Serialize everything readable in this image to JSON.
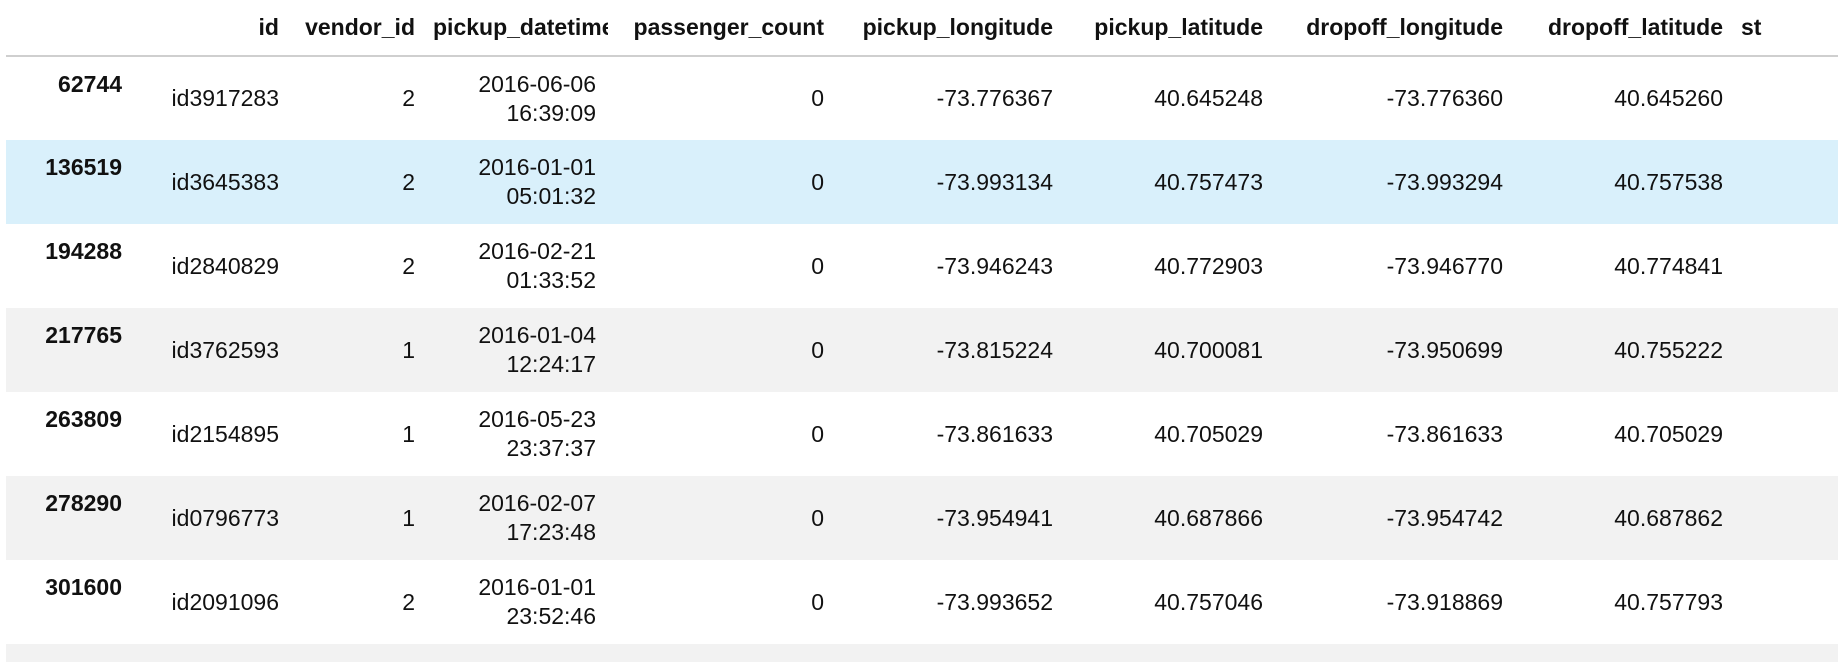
{
  "table": {
    "columns": [
      "",
      "id",
      "vendor_id",
      "pickup_datetime",
      "passenger_count",
      "pickup_longitude",
      "pickup_latitude",
      "dropoff_longitude",
      "dropoff_latitude",
      "st"
    ],
    "rows": [
      {
        "index": "62744",
        "id": "id3917283",
        "vendor_id": "2",
        "pickup_date": "2016-06-06",
        "pickup_time": "16:39:09",
        "passenger_count": "0",
        "pickup_longitude": "-73.776367",
        "pickup_latitude": "40.645248",
        "dropoff_longitude": "-73.776360",
        "dropoff_latitude": "40.645260"
      },
      {
        "index": "136519",
        "id": "id3645383",
        "vendor_id": "2",
        "pickup_date": "2016-01-01",
        "pickup_time": "05:01:32",
        "passenger_count": "0",
        "pickup_longitude": "-73.993134",
        "pickup_latitude": "40.757473",
        "dropoff_longitude": "-73.993294",
        "dropoff_latitude": "40.757538"
      },
      {
        "index": "194288",
        "id": "id2840829",
        "vendor_id": "2",
        "pickup_date": "2016-02-21",
        "pickup_time": "01:33:52",
        "passenger_count": "0",
        "pickup_longitude": "-73.946243",
        "pickup_latitude": "40.772903",
        "dropoff_longitude": "-73.946770",
        "dropoff_latitude": "40.774841"
      },
      {
        "index": "217765",
        "id": "id3762593",
        "vendor_id": "1",
        "pickup_date": "2016-01-04",
        "pickup_time": "12:24:17",
        "passenger_count": "0",
        "pickup_longitude": "-73.815224",
        "pickup_latitude": "40.700081",
        "dropoff_longitude": "-73.950699",
        "dropoff_latitude": "40.755222"
      },
      {
        "index": "263809",
        "id": "id2154895",
        "vendor_id": "1",
        "pickup_date": "2016-05-23",
        "pickup_time": "23:37:37",
        "passenger_count": "0",
        "pickup_longitude": "-73.861633",
        "pickup_latitude": "40.705029",
        "dropoff_longitude": "-73.861633",
        "dropoff_latitude": "40.705029"
      },
      {
        "index": "278290",
        "id": "id0796773",
        "vendor_id": "1",
        "pickup_date": "2016-02-07",
        "pickup_time": "17:23:48",
        "passenger_count": "0",
        "pickup_longitude": "-73.954941",
        "pickup_latitude": "40.687866",
        "dropoff_longitude": "-73.954742",
        "dropoff_latitude": "40.687862"
      },
      {
        "index": "301600",
        "id": "id2091096",
        "vendor_id": "2",
        "pickup_date": "2016-01-01",
        "pickup_time": "23:52:46",
        "passenger_count": "0",
        "pickup_longitude": "-73.993652",
        "pickup_latitude": "40.757046",
        "dropoff_longitude": "-73.918869",
        "dropoff_latitude": "40.757793"
      }
    ]
  }
}
